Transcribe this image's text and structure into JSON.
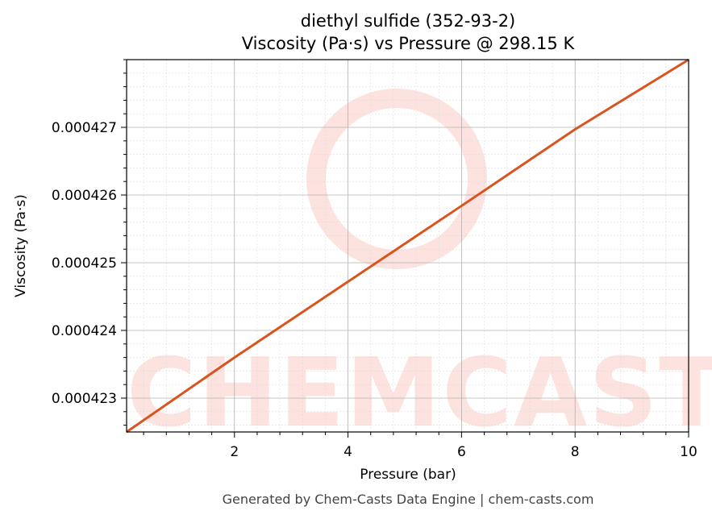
{
  "chart_data": {
    "type": "line",
    "title": "diethyl sulfide (352-93-2)",
    "subtitle": "Viscosity (Pa·s) vs Pressure @ 298.15 K",
    "xlabel": "Pressure (bar)",
    "ylabel": "Viscosity (Pa·s)",
    "xlim": [
      0.1,
      10
    ],
    "ylim": [
      0.0004225,
      0.000428
    ],
    "x_ticks": [
      2,
      4,
      6,
      8,
      10
    ],
    "x_tick_labels": [
      "2",
      "4",
      "6",
      "8",
      "10"
    ],
    "y_ticks": [
      0.000423,
      0.000424,
      0.000425,
      0.000426,
      0.000427
    ],
    "y_tick_labels": [
      "0.000423",
      "0.000424",
      "0.000425",
      "0.000426",
      "0.000427"
    ],
    "grid": true,
    "series": [
      {
        "color": "#d9541e",
        "x": [
          0.1,
          2,
          4,
          6,
          8,
          10
        ],
        "y": [
          0.0004225,
          0.0004236,
          0.00042472,
          0.00042584,
          0.00042697,
          0.000428
        ]
      }
    ]
  },
  "watermark": {
    "text": "CHEMCASTS",
    "color": "#fde3df"
  },
  "footer": "Generated by Chem-Casts Data Engine | chem-casts.com"
}
